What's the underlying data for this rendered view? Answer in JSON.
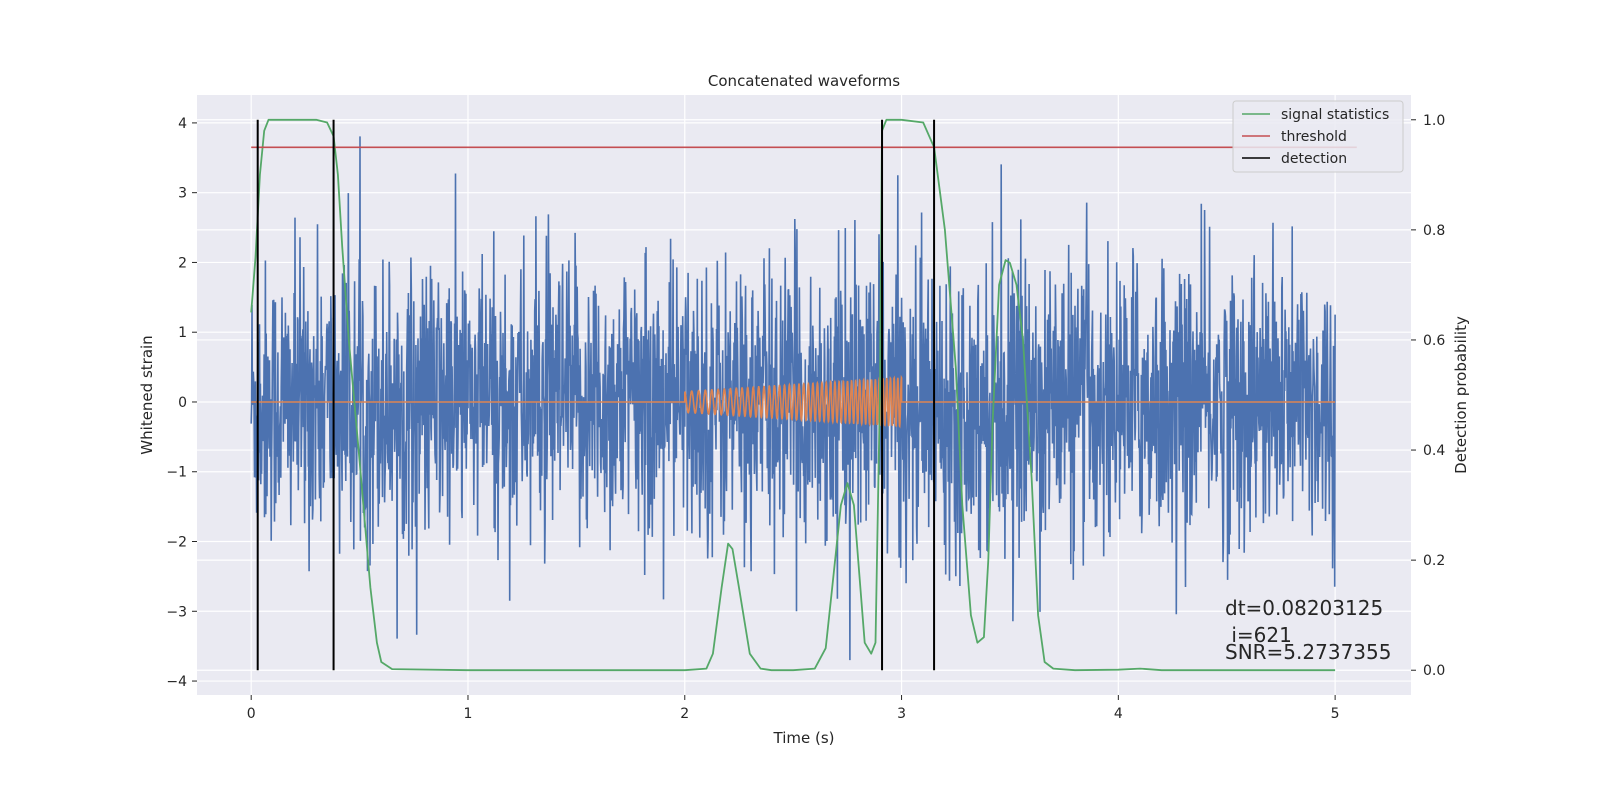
{
  "chart_data": {
    "type": "line",
    "title": "Concatenated waveforms",
    "xlabel": "Time (s)",
    "ylabel": "Whitened strain",
    "ylabel_right": "Detection probability",
    "xlim": [
      -0.25,
      5.35
    ],
    "ylim": [
      -4.2,
      4.4
    ],
    "ylim_right": [
      -0.045,
      1.045
    ],
    "xticks": [
      0,
      1,
      2,
      3,
      4,
      5
    ],
    "yticks": [
      -4,
      -3,
      -2,
      -1,
      0,
      1,
      2,
      3,
      4
    ],
    "yticks_right": [
      0.0,
      0.2,
      0.4,
      0.6,
      0.8,
      1.0
    ],
    "xtick_labels": [
      "0",
      "1",
      "2",
      "3",
      "4",
      "5"
    ],
    "ytick_labels": [
      "−4",
      "−3",
      "−2",
      "−1",
      "0",
      "1",
      "2",
      "3",
      "4"
    ],
    "ytick_labels_right": [
      "0.0",
      "0.2",
      "0.4",
      "0.6",
      "0.8",
      "1.0"
    ],
    "grid": true,
    "legend_position": "top-right",
    "legend": [
      "signal statistics",
      "threshold",
      "detection"
    ],
    "colors": {
      "noise": "#4c72b0",
      "template": "#dd8452",
      "signal_statistics": "#55a868",
      "threshold": "#c44e52",
      "detection": "#000000",
      "background": "#eaeaf2",
      "grid": "#ffffff"
    },
    "noise_series": {
      "x_range": [
        0,
        5
      ],
      "typical_amplitude": 1.0,
      "max": 4.0,
      "min": -3.7
    },
    "template_series": {
      "x_range": [
        2.0,
        3.0
      ],
      "start_amplitude": 0.15,
      "end_amplitude": 0.35,
      "start_frequency_hz": 30,
      "end_frequency_hz": 60
    },
    "threshold": 0.95,
    "threshold_x_range": [
      0,
      5.1
    ],
    "detections": [
      0.03,
      0.38,
      2.91,
      3.15
    ],
    "signal_statistics": {
      "x": [
        0.0,
        0.02,
        0.04,
        0.06,
        0.08,
        0.1,
        0.2,
        0.3,
        0.35,
        0.38,
        0.4,
        0.42,
        0.45,
        0.5,
        0.55,
        0.58,
        0.6,
        0.65,
        1.0,
        1.5,
        2.0,
        2.1,
        2.13,
        2.17,
        2.2,
        2.22,
        2.25,
        2.3,
        2.35,
        2.4,
        2.5,
        2.6,
        2.65,
        2.68,
        2.72,
        2.75,
        2.78,
        2.8,
        2.83,
        2.86,
        2.88,
        2.9,
        2.91,
        2.93,
        2.96,
        3.0,
        3.1,
        3.15,
        3.2,
        3.25,
        3.28,
        3.32,
        3.35,
        3.38,
        3.4,
        3.42,
        3.45,
        3.48,
        3.5,
        3.53,
        3.56,
        3.6,
        3.63,
        3.66,
        3.7,
        3.8,
        4.0,
        4.1,
        4.2,
        4.5,
        5.0
      ],
      "y": [
        0.65,
        0.75,
        0.9,
        0.98,
        1.0,
        1.0,
        1.0,
        1.0,
        0.995,
        0.97,
        0.9,
        0.77,
        0.6,
        0.38,
        0.15,
        0.05,
        0.015,
        0.002,
        0.0,
        0.0,
        0.0,
        0.003,
        0.03,
        0.15,
        0.23,
        0.22,
        0.15,
        0.03,
        0.003,
        0.0,
        0.0,
        0.003,
        0.04,
        0.15,
        0.3,
        0.34,
        0.3,
        0.2,
        0.05,
        0.03,
        0.05,
        0.5,
        0.98,
        1.0,
        1.0,
        1.0,
        0.995,
        0.95,
        0.8,
        0.55,
        0.3,
        0.1,
        0.05,
        0.06,
        0.2,
        0.45,
        0.7,
        0.745,
        0.74,
        0.7,
        0.6,
        0.35,
        0.1,
        0.015,
        0.003,
        0.0,
        0.001,
        0.003,
        0.0,
        0.0,
        0.0
      ]
    },
    "annotations": [
      "dt=0.08203125",
      " i=621",
      "SNR=5.2737355"
    ]
  }
}
